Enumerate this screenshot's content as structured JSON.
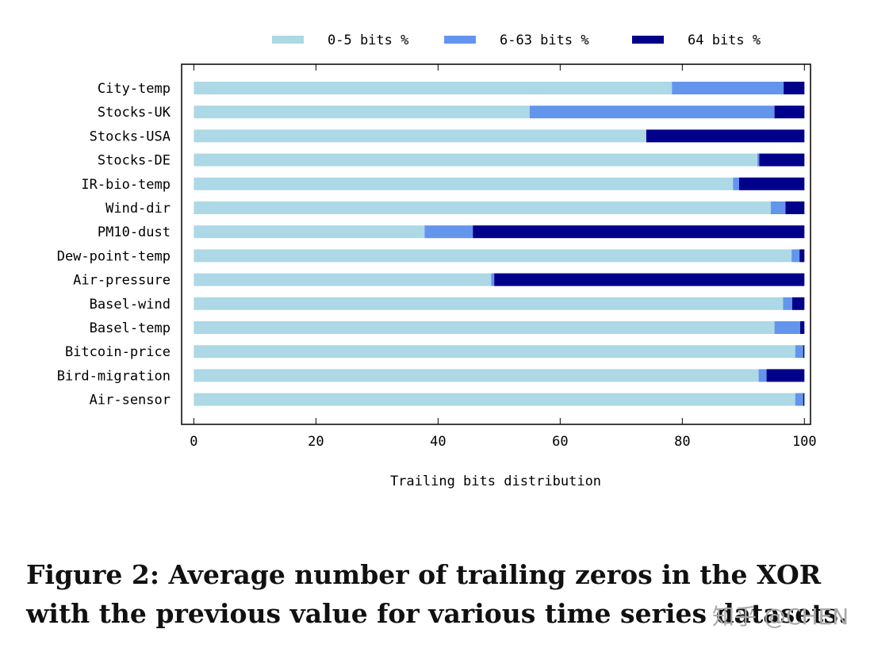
{
  "chart_data": {
    "type": "bar",
    "orientation": "horizontal",
    "stacked": true,
    "categories": [
      "City-temp",
      "Stocks-UK",
      "Stocks-USA",
      "Stocks-DE",
      "IR-bio-temp",
      "Wind-dir",
      "PM10-dust",
      "Dew-point-temp",
      "Air-pressure",
      "Basel-wind",
      "Basel-temp",
      "Bitcoin-price",
      "Bird-migration",
      "Air-sensor"
    ],
    "series": [
      {
        "name": "0-5 bits %",
        "color": "#add8e6",
        "values": [
          78.3,
          55.0,
          74.1,
          92.3,
          88.3,
          94.5,
          37.8,
          97.9,
          48.7,
          96.5,
          95.1,
          98.5,
          92.5,
          98.5
        ]
      },
      {
        "name": "6-63 bits %",
        "color": "#6495ed",
        "values": [
          18.3,
          40.1,
          0.0,
          0.3,
          1.0,
          2.4,
          7.9,
          1.3,
          0.5,
          1.5,
          4.2,
          1.3,
          1.3,
          1.3
        ]
      },
      {
        "name": "64 bits %",
        "color": "#00008b",
        "values": [
          3.4,
          4.9,
          25.9,
          7.4,
          10.7,
          3.1,
          54.3,
          0.8,
          50.8,
          2.0,
          0.7,
          0.2,
          6.2,
          0.2
        ]
      }
    ],
    "xlabel": "Trailing bits distribution",
    "ylabel": "",
    "xlim": [
      -2,
      101
    ],
    "xticks": [
      "0",
      "20",
      "40",
      "60",
      "80",
      "100"
    ],
    "xtick_values": [
      0,
      20,
      40,
      60,
      80,
      100
    ],
    "legend_position": "top",
    "grid": false
  },
  "caption": "Figure 2: Average number of trailing zeros in the XOR with the previous value for various time series datasets.",
  "watermark": "知乎 @CHEN"
}
